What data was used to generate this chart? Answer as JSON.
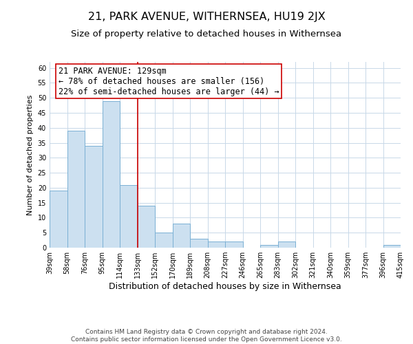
{
  "title": "21, PARK AVENUE, WITHERNSEA, HU19 2JX",
  "subtitle": "Size of property relative to detached houses in Withernsea",
  "xlabel": "Distribution of detached houses by size in Withernsea",
  "ylabel": "Number of detached properties",
  "bar_values": [
    19,
    39,
    34,
    49,
    21,
    14,
    5,
    8,
    3,
    2,
    2,
    0,
    1,
    2,
    0,
    0,
    0,
    0,
    0,
    1
  ],
  "bin_labels": [
    "39sqm",
    "58sqm",
    "76sqm",
    "95sqm",
    "114sqm",
    "133sqm",
    "152sqm",
    "170sqm",
    "189sqm",
    "208sqm",
    "227sqm",
    "246sqm",
    "265sqm",
    "283sqm",
    "302sqm",
    "321sqm",
    "340sqm",
    "359sqm",
    "377sqm",
    "396sqm",
    "415sqm"
  ],
  "bar_color": "#cce0f0",
  "bar_edge_color": "#7ab0d4",
  "grid_color": "#c8d8e8",
  "vline_x": 5.0,
  "vline_color": "#cc0000",
  "annotation_title": "21 PARK AVENUE: 129sqm",
  "annotation_line1": "← 78% of detached houses are smaller (156)",
  "annotation_line2": "22% of semi-detached houses are larger (44) →",
  "annotation_box_color": "#ffffff",
  "annotation_box_edge": "#cc0000",
  "ylim": [
    0,
    62
  ],
  "yticks": [
    0,
    5,
    10,
    15,
    20,
    25,
    30,
    35,
    40,
    45,
    50,
    55,
    60
  ],
  "footer_line1": "Contains HM Land Registry data © Crown copyright and database right 2024.",
  "footer_line2": "Contains public sector information licensed under the Open Government Licence v3.0.",
  "title_fontsize": 11.5,
  "subtitle_fontsize": 9.5,
  "xlabel_fontsize": 9,
  "ylabel_fontsize": 8,
  "tick_fontsize": 7,
  "annotation_fontsize": 8.5,
  "footer_fontsize": 6.5
}
